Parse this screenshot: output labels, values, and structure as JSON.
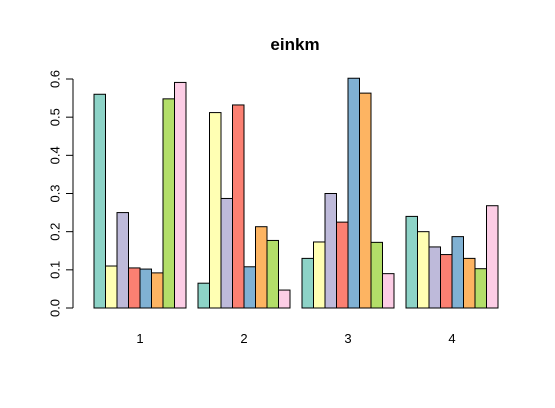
{
  "chart_data": {
    "type": "bar",
    "title": "einkm",
    "xlabel": "",
    "ylabel": "",
    "categories": [
      "1",
      "2",
      "3",
      "4"
    ],
    "ylim": [
      0,
      0.6
    ],
    "yticks": [
      "0.0",
      "0.1",
      "0.2",
      "0.3",
      "0.4",
      "0.5",
      "0.6"
    ],
    "legend": "none",
    "grid": false,
    "series": [
      {
        "color": "#8DD3C7",
        "values": [
          0.56,
          0.065,
          0.13,
          0.24
        ]
      },
      {
        "color": "#FFFFB3",
        "values": [
          0.11,
          0.512,
          0.173,
          0.2
        ]
      },
      {
        "color": "#BEBADA",
        "values": [
          0.25,
          0.287,
          0.3,
          0.16
        ]
      },
      {
        "color": "#FB8072",
        "values": [
          0.105,
          0.532,
          0.225,
          0.14
        ]
      },
      {
        "color": "#80B1D3",
        "values": [
          0.102,
          0.108,
          0.602,
          0.187
        ]
      },
      {
        "color": "#FDB462",
        "values": [
          0.092,
          0.213,
          0.563,
          0.13
        ]
      },
      {
        "color": "#B3DE69",
        "values": [
          0.548,
          0.177,
          0.172,
          0.103
        ]
      },
      {
        "color": "#FCCDE5",
        "values": [
          0.591,
          0.047,
          0.09,
          0.268
        ]
      }
    ]
  }
}
